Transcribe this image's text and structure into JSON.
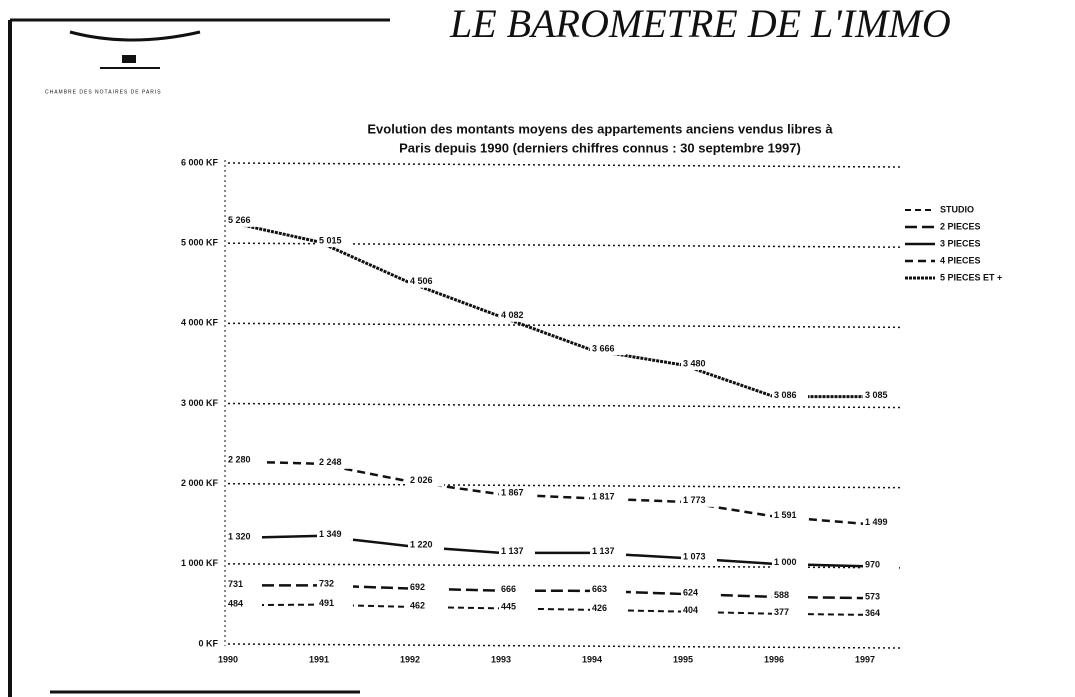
{
  "header": {
    "title": "LE BAROMETRE DE L'IMMO",
    "organization": "CHAMBRE DES NOTAIRES DE PARIS"
  },
  "chart_data": {
    "type": "line",
    "title": "Evolution des montants moyens des appartements anciens vendus libres à",
    "subtitle": "Paris depuis 1990 (derniers chiffres connus : 30 septembre 1997)",
    "categories": [
      "1990",
      "1991",
      "1992",
      "1993",
      "1994",
      "1995",
      "1996",
      "1997"
    ],
    "ylim": [
      0,
      6000
    ],
    "yticks": [
      {
        "value": 0,
        "label": "0 KF"
      },
      {
        "value": 1000,
        "label": "1 000 KF"
      },
      {
        "value": 2000,
        "label": "2 000 KF"
      },
      {
        "value": 3000,
        "label": "3 000 KF"
      },
      {
        "value": 4000,
        "label": "4 000 KF"
      },
      {
        "value": 5000,
        "label": "5 000 KF"
      },
      {
        "value": 6000,
        "label": "6 000 KF"
      }
    ],
    "grid": true,
    "legend": "upper right",
    "series": [
      {
        "name": "STUDIO",
        "color": "#111111",
        "values": [
          484,
          491,
          462,
          445,
          426,
          404,
          377,
          364
        ],
        "value_labels": [
          "484",
          "491",
          "462",
          "445",
          "426",
          "404",
          "377",
          "364"
        ]
      },
      {
        "name": "2 PIECES",
        "color": "#111111",
        "values": [
          731,
          732,
          692,
          666,
          663,
          624,
          588,
          573
        ],
        "value_labels": [
          "731",
          "732",
          "692",
          "666",
          "663",
          "624",
          "588",
          "573"
        ]
      },
      {
        "name": "3 PIECES",
        "color": "#111111",
        "values": [
          1320,
          1349,
          1220,
          1137,
          1137,
          1073,
          1000,
          970
        ],
        "value_labels": [
          "1 320",
          "1 349",
          "1 220",
          "1 137",
          "1 137",
          "1 073",
          "1 000",
          "970"
        ]
      },
      {
        "name": "4 PIECES",
        "color": "#111111",
        "values": [
          2280,
          2248,
          2026,
          1867,
          1817,
          1773,
          1591,
          1499
        ],
        "value_labels": [
          "2 280",
          "2 248",
          "2 026",
          "1 867",
          "1 817",
          "1 773",
          "1 591",
          "1 499"
        ]
      },
      {
        "name": "5 PIECES ET +",
        "color": "#111111",
        "values": [
          5266,
          5015,
          4506,
          4082,
          3666,
          3480,
          3086,
          3085
        ],
        "value_labels": [
          "5 266",
          "5 015",
          "4 506",
          "4 082",
          "3 666",
          "3 480",
          "3 086",
          "3 085"
        ]
      }
    ]
  }
}
